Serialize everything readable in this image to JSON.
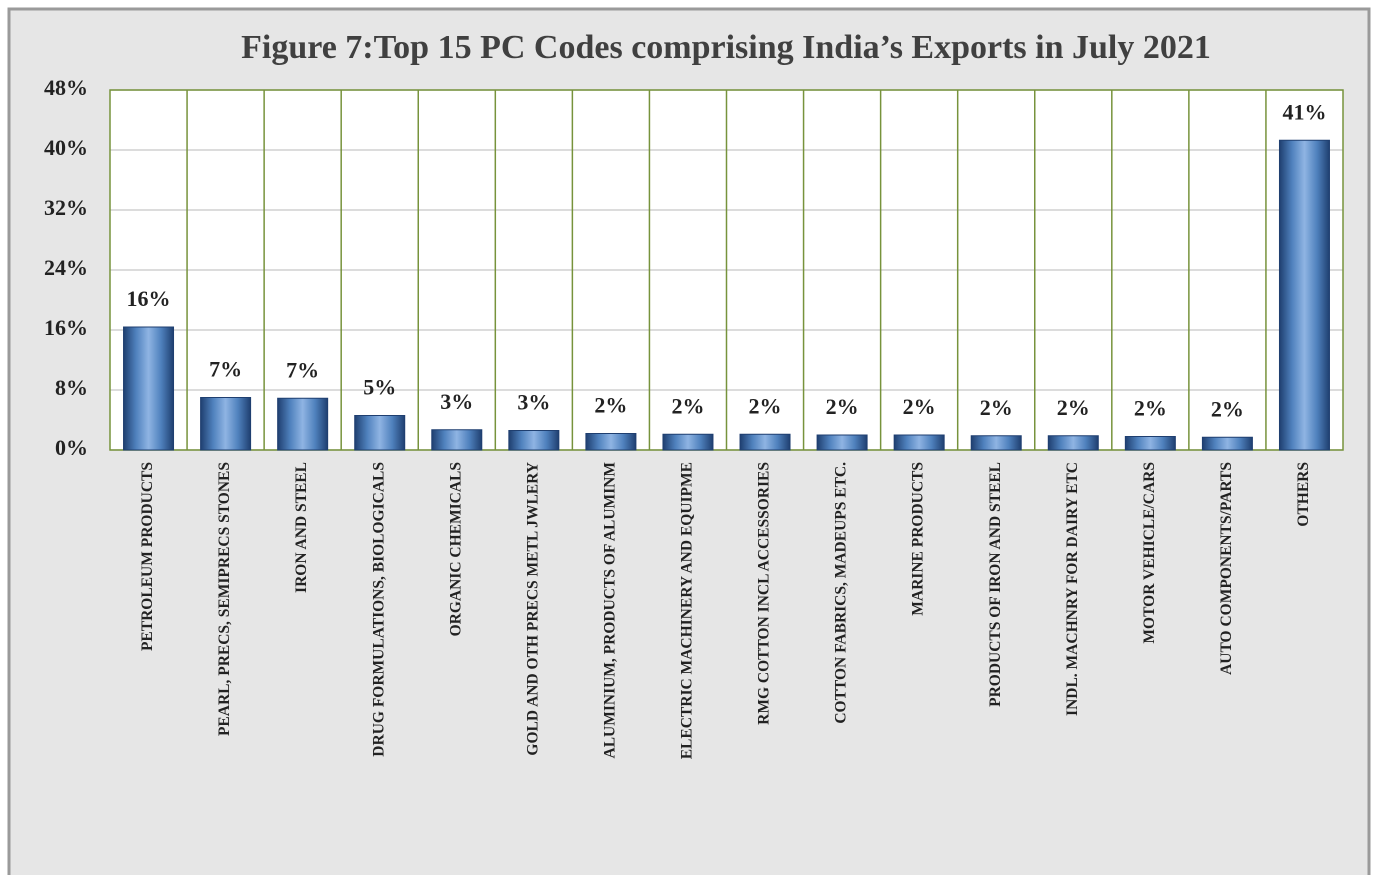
{
  "chart_data": {
    "type": "bar",
    "title": "Figure 7:Top 15 PC Codes comprising India’s Exports in July 2021",
    "categories": [
      "PETROLEUM PRODUCTS",
      "PEARL, PRECS, SEMIPRECS STONES",
      "IRON AND STEEL",
      "DRUG FORMULATIONS, BIOLOGICALS",
      "ORGANIC CHEMICALS",
      "GOLD AND OTH PRECS METL JWLERY",
      "ALUMINIUM, PRODUCTS OF ALUMINM",
      "ELECTRIC MACHINERY AND EQUIPME",
      "RMG COTTON INCL ACCESSORIES",
      "COTTON FABRICS, MADEUPS ETC.",
      "MARINE PRODUCTS",
      "PRODUCTS OF IRON AND STEEL",
      "INDL. MACHNRY FOR DAIRY ETC",
      "MOTOR VEHICLE/CARS",
      "AUTO COMPONENTS/PARTS",
      "OTHERS"
    ],
    "values": [
      16.4,
      7.0,
      6.9,
      4.6,
      2.7,
      2.6,
      2.2,
      2.1,
      2.1,
      2.0,
      2.0,
      1.9,
      1.9,
      1.8,
      1.7,
      41.3
    ],
    "value_labels": [
      "16%",
      "7%",
      "7%",
      "5%",
      "3%",
      "3%",
      "2%",
      "2%",
      "2%",
      "2%",
      "2%",
      "2%",
      "2%",
      "2%",
      "2%",
      "41%"
    ],
    "color": "#4f81bd",
    "ylim": [
      0,
      48
    ],
    "yticks": [
      {
        "value": 0,
        "label": "0%"
      },
      {
        "value": 8,
        "label": "8%"
      },
      {
        "value": 16,
        "label": "16%"
      },
      {
        "value": 24,
        "label": "24%"
      },
      {
        "value": 32,
        "label": "32%"
      },
      {
        "value": 40,
        "label": "40%"
      },
      {
        "value": 48,
        "label": "48%"
      }
    ],
    "grid": true
  }
}
